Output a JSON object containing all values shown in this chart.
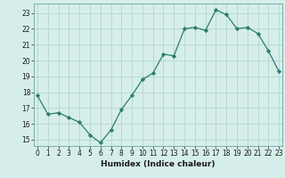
{
  "title": "",
  "xlabel": "Humidex (Indice chaleur)",
  "ylabel": "",
  "x": [
    0,
    1,
    2,
    3,
    4,
    5,
    6,
    7,
    8,
    9,
    10,
    11,
    12,
    13,
    14,
    15,
    16,
    17,
    18,
    19,
    20,
    21,
    22,
    23
  ],
  "y": [
    17.8,
    16.6,
    16.7,
    16.4,
    16.1,
    15.3,
    14.8,
    15.6,
    16.9,
    17.8,
    18.8,
    19.2,
    20.4,
    20.3,
    22.0,
    22.1,
    21.9,
    23.2,
    22.9,
    22.0,
    22.1,
    21.7,
    20.6,
    19.3
  ],
  "line_color": "#2d7d6e",
  "marker": "D",
  "marker_size": 2.2,
  "bg_color": "#d6eeea",
  "grid_color": "#b8d8d4",
  "text_color": "#1a1a1a",
  "ylim_min": 14.6,
  "ylim_max": 23.6,
  "xlim_min": -0.3,
  "xlim_max": 23.3,
  "yticks": [
    15,
    16,
    17,
    18,
    19,
    20,
    21,
    22,
    23
  ],
  "xticks": [
    0,
    1,
    2,
    3,
    4,
    5,
    6,
    7,
    8,
    9,
    10,
    11,
    12,
    13,
    14,
    15,
    16,
    17,
    18,
    19,
    20,
    21,
    22,
    23
  ],
  "tick_fontsize": 5.5,
  "xlabel_fontsize": 6.5,
  "xlabel_fontweight": "bold"
}
